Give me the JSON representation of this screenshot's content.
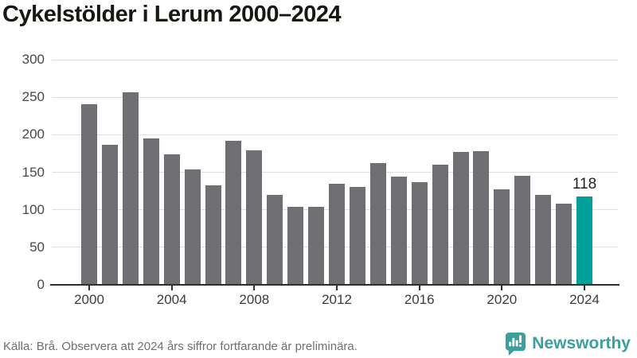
{
  "chart_data": {
    "type": "bar",
    "title": "Cykelstölder i Lerum 2000–2024",
    "xlabel": "",
    "ylabel": "",
    "categories": [
      2000,
      2001,
      2002,
      2003,
      2004,
      2005,
      2006,
      2007,
      2008,
      2009,
      2010,
      2011,
      2012,
      2013,
      2014,
      2015,
      2016,
      2017,
      2018,
      2019,
      2020,
      2021,
      2022,
      2023,
      2024
    ],
    "values": [
      241,
      187,
      257,
      195,
      174,
      154,
      132,
      192,
      179,
      120,
      104,
      104,
      135,
      130,
      162,
      144,
      137,
      160,
      177,
      178,
      127,
      145,
      120,
      108,
      118
    ],
    "ylim": [
      0,
      300
    ],
    "ytick_step": 50,
    "ytick_labels": [
      "0",
      "50",
      "100",
      "150",
      "200",
      "250",
      "300"
    ],
    "xtick_labels": [
      "2000",
      "2004",
      "2008",
      "2012",
      "2016",
      "2020",
      "2024"
    ],
    "grid": "horizontal",
    "legend": "none",
    "bar_color": "#6e6e73",
    "highlight_color": "#00a099",
    "highlight_index": 24,
    "annotation": {
      "text": "118",
      "index": 24
    }
  },
  "footer": {
    "source": "Källa: Brå. Observera att 2024 års siffror fortfarande är preliminära.",
    "brand": "Newsworthy",
    "brand_color": "#3ba09c"
  },
  "icons": {
    "logo": "newsworthy-speech-bubble-bar-chart-icon"
  }
}
